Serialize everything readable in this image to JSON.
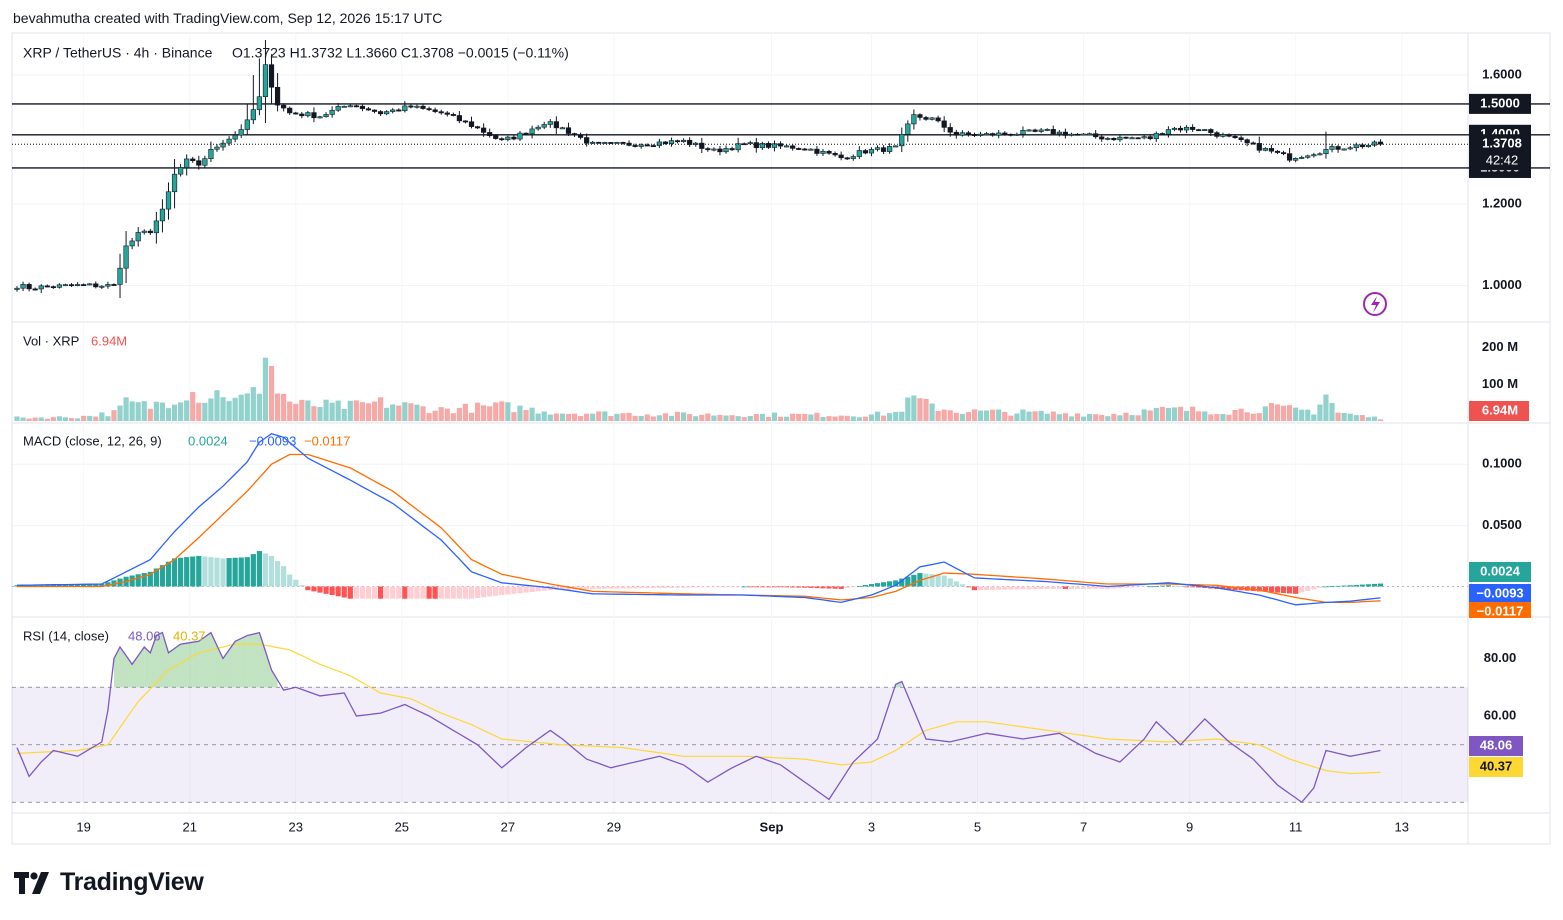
{
  "header": {
    "credit": "bevahmutha created with TradingView.com, Sep 12, 2026 15:17 UTC"
  },
  "legend": {
    "symbol": "XRP / TetherUS · 4h · Binance",
    "open": "O1.3723",
    "high": "H1.3732",
    "low": "L1.3660",
    "close": "C1.3708",
    "change": "−0.0015 (−0.11%)"
  },
  "vol": {
    "label": "Vol · XRP",
    "value": "6.94M"
  },
  "macd": {
    "label": "MACD (close, 12, 26, 9)",
    "hist": "0.0024",
    "macd": "−0.0093",
    "signal": "−0.0117"
  },
  "rsi": {
    "label": "RSI (14, close)",
    "value": "48.06",
    "ma": "40.37"
  },
  "brand": {
    "name": "TradingView"
  },
  "colors": {
    "up": "#26a69a",
    "down": "#ef5350",
    "macd": "#2962ff",
    "signal": "#ff6d00",
    "rsi": "#7e57c2",
    "rsi_ma": "#fdd835",
    "text": "#131722"
  },
  "chart_data": [
    {
      "type": "candlestick",
      "title": "XRP / TetherUS · 4h · Binance",
      "x_tick_labels": [
        "19",
        "21",
        "23",
        "25",
        "27",
        "29",
        "Sep",
        "3",
        "5",
        "7",
        "9",
        "11",
        "13"
      ],
      "y_tick_labels": [
        "1.6000",
        "1.2000",
        "1.0000"
      ],
      "y_range": [
        0.93,
        1.73
      ],
      "y_scale": "log",
      "price_levels": [
        {
          "label": "1.5000",
          "value": 1.5
        },
        {
          "label": "1.4000",
          "value": 1.4
        },
        {
          "label": "1.3000",
          "value": 1.3
        }
      ],
      "last_price": {
        "label": "1.3708",
        "countdown": "42:42",
        "value": 1.3708
      },
      "close_anchors": [
        [
          0,
          1.0
        ],
        [
          2,
          0.995
        ],
        [
          6,
          0.998
        ],
        [
          10,
          1.0
        ],
        [
          14,
          1.0
        ],
        [
          16,
          1.0
        ],
        [
          18,
          1.09
        ],
        [
          20,
          1.12
        ],
        [
          22,
          1.13
        ],
        [
          24,
          1.18
        ],
        [
          26,
          1.28
        ],
        [
          28,
          1.32
        ],
        [
          30,
          1.31
        ],
        [
          32,
          1.35
        ],
        [
          34,
          1.38
        ],
        [
          36,
          1.4
        ],
        [
          38,
          1.44
        ],
        [
          40,
          1.52
        ],
        [
          41,
          1.63
        ],
        [
          43,
          1.5
        ],
        [
          45,
          1.47
        ],
        [
          50,
          1.46
        ],
        [
          55,
          1.5
        ],
        [
          60,
          1.47
        ],
        [
          65,
          1.49
        ],
        [
          70,
          1.47
        ],
        [
          75,
          1.43
        ],
        [
          80,
          1.38
        ],
        [
          83,
          1.4
        ],
        [
          87,
          1.44
        ],
        [
          90,
          1.42
        ],
        [
          95,
          1.37
        ],
        [
          100,
          1.37
        ],
        [
          110,
          1.38
        ],
        [
          115,
          1.35
        ],
        [
          120,
          1.37
        ],
        [
          130,
          1.36
        ],
        [
          136,
          1.33
        ],
        [
          140,
          1.35
        ],
        [
          145,
          1.36
        ],
        [
          148,
          1.46
        ],
        [
          151,
          1.45
        ],
        [
          155,
          1.4
        ],
        [
          160,
          1.4
        ],
        [
          170,
          1.41
        ],
        [
          180,
          1.39
        ],
        [
          187,
          1.39
        ],
        [
          190,
          1.42
        ],
        [
          195,
          1.42
        ],
        [
          200,
          1.39
        ],
        [
          205,
          1.36
        ],
        [
          210,
          1.33
        ],
        [
          215,
          1.35
        ],
        [
          218,
          1.36
        ],
        [
          220,
          1.365
        ],
        [
          225,
          1.3708
        ]
      ]
    },
    {
      "type": "bar",
      "title": "Vol · XRP",
      "y_tick_labels": [
        "200 M",
        "100 M"
      ],
      "y_range": [
        0,
        240
      ],
      "last_value": "6.94M",
      "volume_anchors": [
        [
          0,
          10
        ],
        [
          10,
          12
        ],
        [
          16,
          25
        ],
        [
          18,
          55
        ],
        [
          22,
          45
        ],
        [
          26,
          70
        ],
        [
          28,
          95
        ],
        [
          31,
          70
        ],
        [
          34,
          90
        ],
        [
          36,
          60
        ],
        [
          39,
          80
        ],
        [
          40,
          110
        ],
        [
          41,
          232
        ],
        [
          43,
          90
        ],
        [
          46,
          50
        ],
        [
          55,
          45
        ],
        [
          60,
          55
        ],
        [
          70,
          35
        ],
        [
          80,
          45
        ],
        [
          90,
          25
        ],
        [
          110,
          20
        ],
        [
          140,
          18
        ],
        [
          145,
          25
        ],
        [
          148,
          68
        ],
        [
          150,
          50
        ],
        [
          155,
          30
        ],
        [
          180,
          20
        ],
        [
          190,
          35
        ],
        [
          200,
          30
        ],
        [
          207,
          40
        ],
        [
          214,
          30
        ],
        [
          216,
          82
        ],
        [
          218,
          25
        ],
        [
          225,
          8
        ]
      ]
    },
    {
      "type": "line",
      "title": "MACD (close, 12, 26, 9)",
      "y_tick_labels": [
        "0.1000",
        "0.0500"
      ],
      "y_range": [
        -0.0225,
        0.128
      ],
      "last_values": {
        "hist": "0.0024",
        "macd": "−0.0093",
        "signal": "−0.0117"
      },
      "series": [
        {
          "name": "MACD",
          "anchors": [
            [
              0,
              0.001
            ],
            [
              14,
              0.002
            ],
            [
              18,
              0.012
            ],
            [
              22,
              0.022
            ],
            [
              26,
              0.045
            ],
            [
              30,
              0.065
            ],
            [
              34,
              0.082
            ],
            [
              38,
              0.102
            ],
            [
              40,
              0.118
            ],
            [
              42,
              0.125
            ],
            [
              44,
              0.122
            ],
            [
              48,
              0.105
            ],
            [
              55,
              0.087
            ],
            [
              62,
              0.068
            ],
            [
              70,
              0.038
            ],
            [
              75,
              0.012
            ],
            [
              80,
              0.003
            ],
            [
              88,
              -0.001
            ],
            [
              95,
              -0.006
            ],
            [
              110,
              -0.007
            ],
            [
              120,
              -0.007
            ],
            [
              130,
              -0.009
            ],
            [
              136,
              -0.013
            ],
            [
              141,
              -0.007
            ],
            [
              145,
              0.001
            ],
            [
              149,
              0.016
            ],
            [
              153,
              0.02
            ],
            [
              158,
              0.007
            ],
            [
              170,
              0.004
            ],
            [
              180,
              0.0
            ],
            [
              190,
              0.003
            ],
            [
              198,
              -0.001
            ],
            [
              205,
              -0.007
            ],
            [
              211,
              -0.015
            ],
            [
              216,
              -0.013
            ],
            [
              220,
              -0.012
            ],
            [
              225,
              -0.0093
            ]
          ]
        },
        {
          "name": "Signal",
          "anchors": [
            [
              0,
              0.0
            ],
            [
              14,
              0.0
            ],
            [
              18,
              0.004
            ],
            [
              22,
              0.01
            ],
            [
              26,
              0.022
            ],
            [
              30,
              0.04
            ],
            [
              34,
              0.059
            ],
            [
              38,
              0.078
            ],
            [
              42,
              0.1
            ],
            [
              45,
              0.108
            ],
            [
              48,
              0.108
            ],
            [
              55,
              0.097
            ],
            [
              62,
              0.078
            ],
            [
              70,
              0.048
            ],
            [
              75,
              0.022
            ],
            [
              80,
              0.01
            ],
            [
              88,
              0.002
            ],
            [
              95,
              -0.004
            ],
            [
              110,
              -0.006
            ],
            [
              130,
              -0.008
            ],
            [
              136,
              -0.011
            ],
            [
              141,
              -0.009
            ],
            [
              145,
              -0.004
            ],
            [
              149,
              0.005
            ],
            [
              153,
              0.011
            ],
            [
              158,
              0.01
            ],
            [
              170,
              0.006
            ],
            [
              180,
              0.002
            ],
            [
              190,
              0.002
            ],
            [
              198,
              0.001
            ],
            [
              205,
              -0.003
            ],
            [
              211,
              -0.009
            ],
            [
              216,
              -0.013
            ],
            [
              220,
              -0.013
            ],
            [
              225,
              -0.0117
            ]
          ]
        }
      ]
    },
    {
      "type": "line",
      "title": "RSI (14, close)",
      "y_tick_labels": [
        "80.00",
        "60.00"
      ],
      "y_range": [
        28,
        92
      ],
      "band": [
        30,
        70
      ],
      "last_values": {
        "rsi": "48.06",
        "ma": "40.37"
      },
      "series": [
        {
          "name": "RSI",
          "anchors": [
            [
              0,
              49
            ],
            [
              2,
              39
            ],
            [
              4,
              44
            ],
            [
              6,
              48
            ],
            [
              10,
              46
            ],
            [
              14,
              51
            ],
            [
              15,
              62
            ],
            [
              16,
              80
            ],
            [
              17,
              84
            ],
            [
              19,
              78
            ],
            [
              21,
              84
            ],
            [
              22,
              82
            ],
            [
              23,
              88
            ],
            [
              24,
              89
            ],
            [
              25,
              82
            ],
            [
              27,
              85
            ],
            [
              30,
              86
            ],
            [
              32,
              89
            ],
            [
              34,
              80
            ],
            [
              36,
              86
            ],
            [
              38,
              88
            ],
            [
              40,
              89
            ],
            [
              42,
              76
            ],
            [
              44,
              69
            ],
            [
              46,
              70
            ],
            [
              50,
              67
            ],
            [
              54,
              68
            ],
            [
              56,
              60
            ],
            [
              60,
              61
            ],
            [
              64,
              64
            ],
            [
              68,
              60
            ],
            [
              72,
              55
            ],
            [
              76,
              50
            ],
            [
              80,
              42
            ],
            [
              84,
              49
            ],
            [
              88,
              55
            ],
            [
              90,
              52
            ],
            [
              94,
              45
            ],
            [
              98,
              42
            ],
            [
              102,
              44
            ],
            [
              106,
              46
            ],
            [
              110,
              43
            ],
            [
              114,
              37
            ],
            [
              118,
              42
            ],
            [
              122,
              46
            ],
            [
              126,
              43
            ],
            [
              130,
              37
            ],
            [
              134,
              31
            ],
            [
              138,
              44
            ],
            [
              142,
              52
            ],
            [
              145,
              71
            ],
            [
              146,
              72
            ],
            [
              150,
              52
            ],
            [
              154,
              51
            ],
            [
              160,
              54
            ],
            [
              166,
              52
            ],
            [
              172,
              54
            ],
            [
              178,
              47
            ],
            [
              182,
              44
            ],
            [
              186,
              52
            ],
            [
              188,
              58
            ],
            [
              192,
              50
            ],
            [
              196,
              59
            ],
            [
              200,
              51
            ],
            [
              204,
              45
            ],
            [
              208,
              36
            ],
            [
              212,
              30
            ],
            [
              214,
              35
            ],
            [
              216,
              48
            ],
            [
              220,
              46
            ],
            [
              225,
              48
            ]
          ]
        },
        {
          "name": "RSI-based MA",
          "anchors": [
            [
              0,
              47
            ],
            [
              10,
              48
            ],
            [
              15,
              50
            ],
            [
              20,
              65
            ],
            [
              25,
              76
            ],
            [
              30,
              82
            ],
            [
              36,
              85
            ],
            [
              40,
              85
            ],
            [
              45,
              83
            ],
            [
              50,
              78
            ],
            [
              55,
              74
            ],
            [
              60,
              68
            ],
            [
              65,
              66
            ],
            [
              70,
              61
            ],
            [
              75,
              57
            ],
            [
              80,
              52
            ],
            [
              90,
              50
            ],
            [
              100,
              49
            ],
            [
              110,
              46
            ],
            [
              120,
              46
            ],
            [
              130,
              45
            ],
            [
              136,
              43
            ],
            [
              141,
              44
            ],
            [
              145,
              48
            ],
            [
              150,
              55
            ],
            [
              155,
              58
            ],
            [
              160,
              58
            ],
            [
              170,
              55
            ],
            [
              180,
              52
            ],
            [
              190,
              51
            ],
            [
              198,
              52
            ],
            [
              205,
              50
            ],
            [
              210,
              45
            ],
            [
              216,
              41
            ],
            [
              220,
              40
            ],
            [
              225,
              40.37
            ]
          ]
        }
      ]
    }
  ]
}
